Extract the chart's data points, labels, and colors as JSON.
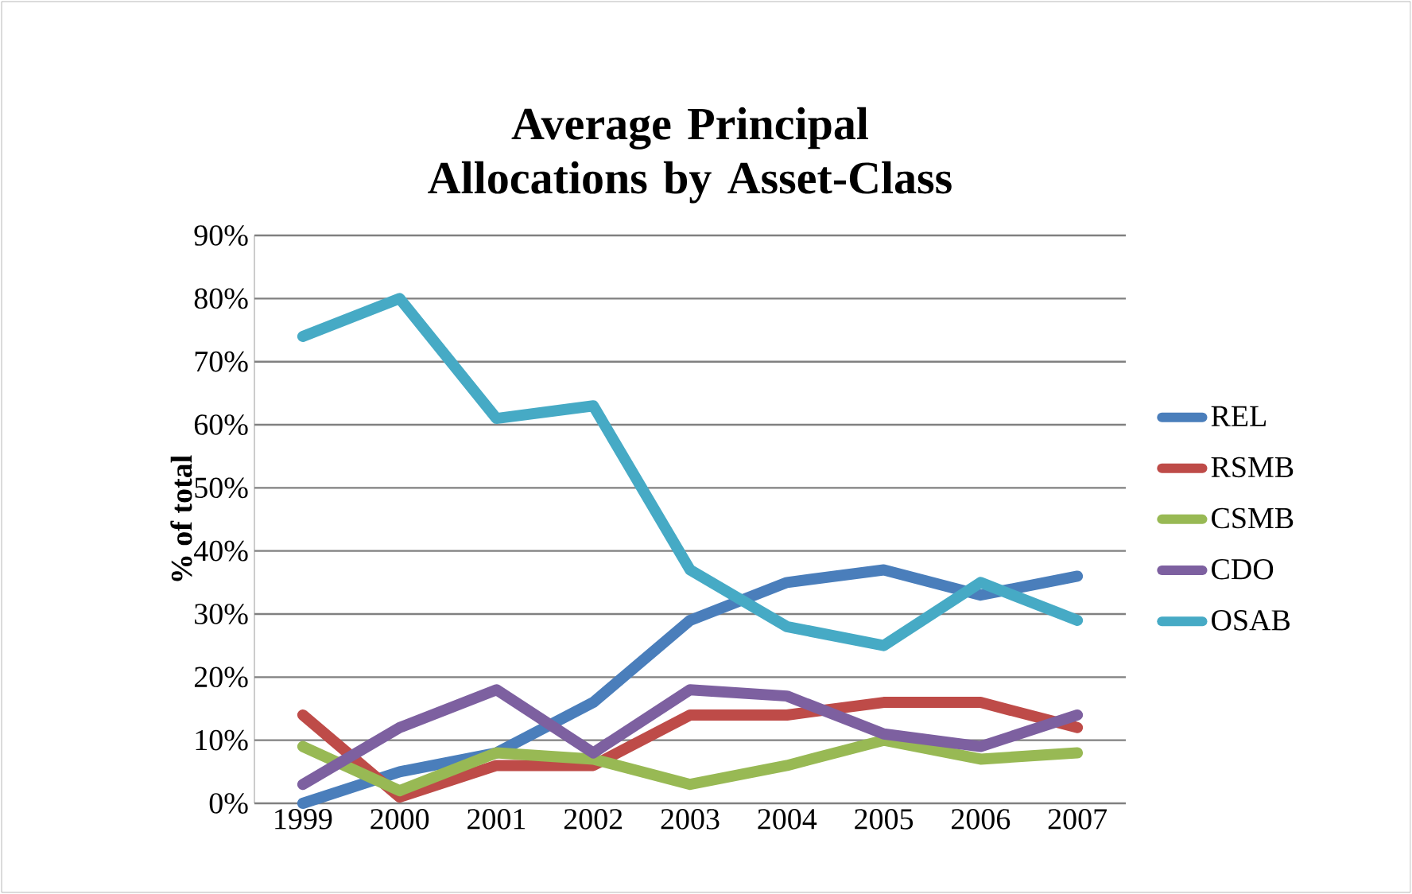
{
  "chart_data": {
    "type": "line",
    "title": "Average Principal Allocations by Asset-Class",
    "ylabel": "% of total",
    "categories": [
      "1999",
      "2000",
      "2001",
      "2002",
      "2003",
      "2004",
      "2005",
      "2006",
      "2007"
    ],
    "series": [
      {
        "name": "REL",
        "color": "#4a7ebb",
        "values": [
          0,
          5,
          8,
          16,
          29,
          35,
          37,
          33,
          36
        ]
      },
      {
        "name": "RSMB",
        "color": "#be4b48",
        "values": [
          14,
          1,
          6,
          6,
          14,
          14,
          16,
          16,
          12
        ]
      },
      {
        "name": "CSMB",
        "color": "#98b954",
        "values": [
          9,
          2,
          8,
          7,
          3,
          6,
          10,
          7,
          8
        ]
      },
      {
        "name": "CDO",
        "color": "#7d60a0",
        "values": [
          3,
          12,
          18,
          8,
          18,
          17,
          11,
          9,
          14
        ]
      },
      {
        "name": "OSAB",
        "color": "#46aac5",
        "values": [
          74,
          80,
          61,
          63,
          37,
          28,
          25,
          35,
          29
        ]
      }
    ],
    "ylim": [
      0,
      90
    ],
    "yticks": [
      {
        "value": 0,
        "label": "0%"
      },
      {
        "value": 10,
        "label": "10%"
      },
      {
        "value": 20,
        "label": "20%"
      },
      {
        "value": 30,
        "label": "30%"
      },
      {
        "value": 40,
        "label": "40%"
      },
      {
        "value": 50,
        "label": "50%"
      },
      {
        "value": 60,
        "label": "60%"
      },
      {
        "value": 70,
        "label": "70%"
      },
      {
        "value": 80,
        "label": "80%"
      },
      {
        "value": 90,
        "label": "90%"
      }
    ],
    "grid": "y",
    "legend": "right",
    "marker": "none",
    "line_style": "solid"
  }
}
